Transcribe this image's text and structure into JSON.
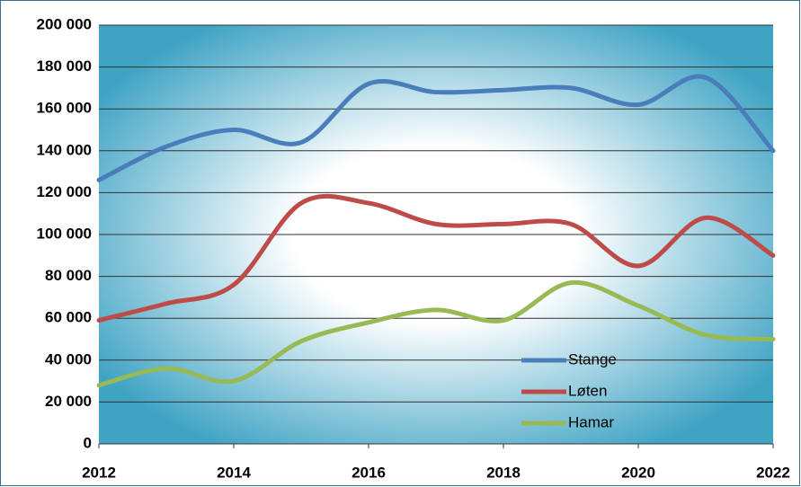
{
  "chart_data": {
    "type": "line",
    "x": [
      2012,
      2013,
      2014,
      2015,
      2016,
      2017,
      2018,
      2019,
      2020,
      2021,
      2022
    ],
    "xlim": [
      2012,
      2022
    ],
    "xticks": [
      2012,
      2014,
      2016,
      2018,
      2020,
      2022
    ],
    "ylim": [
      0,
      200000
    ],
    "yticks": [
      {
        "value": 0,
        "label": "0"
      },
      {
        "value": 20000,
        "label": "20 000"
      },
      {
        "value": 40000,
        "label": "40 000"
      },
      {
        "value": 60000,
        "label": "60 000"
      },
      {
        "value": 80000,
        "label": "80 000"
      },
      {
        "value": 100000,
        "label": "100 000"
      },
      {
        "value": 120000,
        "label": "120 000"
      },
      {
        "value": 140000,
        "label": "140 000"
      },
      {
        "value": 160000,
        "label": "160 000"
      },
      {
        "value": 180000,
        "label": "180 000"
      },
      {
        "value": 200000,
        "label": "200 000"
      }
    ],
    "grid": true,
    "smooth": true,
    "legend": "lower right",
    "series": [
      {
        "name": "Stange",
        "color": "#4a7ebb",
        "values": [
          126000,
          142000,
          150000,
          144000,
          172000,
          168000,
          169000,
          170000,
          162000,
          175000,
          140000
        ]
      },
      {
        "name": "Løten",
        "color": "#be4b48",
        "values": [
          59000,
          67000,
          76000,
          115000,
          115000,
          105000,
          105000,
          105000,
          85000,
          108000,
          90000
        ]
      },
      {
        "name": "Hamar",
        "color": "#98b954",
        "values": [
          28000,
          36000,
          30000,
          49000,
          58000,
          64000,
          59000,
          77000,
          66000,
          52000,
          50000
        ]
      }
    ]
  }
}
